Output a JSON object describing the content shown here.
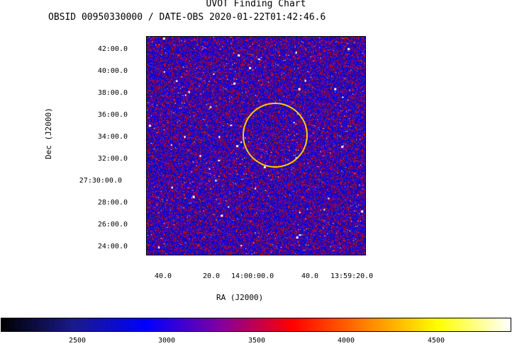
{
  "title": "UVOT Finding Chart",
  "subtitle": "OBSID 00950330000 / DATE-OBS 2020-01-22T01:42:46.6",
  "axes": {
    "y_label": "Dec (J2000)",
    "x_label": "RA (J2000)",
    "dec_ticks": [
      "42:00.0",
      "40:00.0",
      "38:00.0",
      "36:00.0",
      "34:00.0",
      "32:00.0",
      "27:30:00.0",
      "28:00.0",
      "26:00.0",
      "24:00.0"
    ],
    "ra_ticks": [
      "40.0",
      "20.0",
      "14:00:00.0",
      "40.0",
      "13:59:20.0"
    ]
  },
  "colorbar": {
    "ticks": [
      "2500",
      "3000",
      "3500",
      "4000",
      "4500"
    ],
    "colormap": [
      "#000000",
      "#1a1a8c",
      "#0000ff",
      "#8000a0",
      "#ff0000",
      "#ff8000",
      "#ffff00",
      "#ffffff"
    ]
  },
  "marker": {
    "color": "#ffcc00",
    "shape": "circle"
  }
}
